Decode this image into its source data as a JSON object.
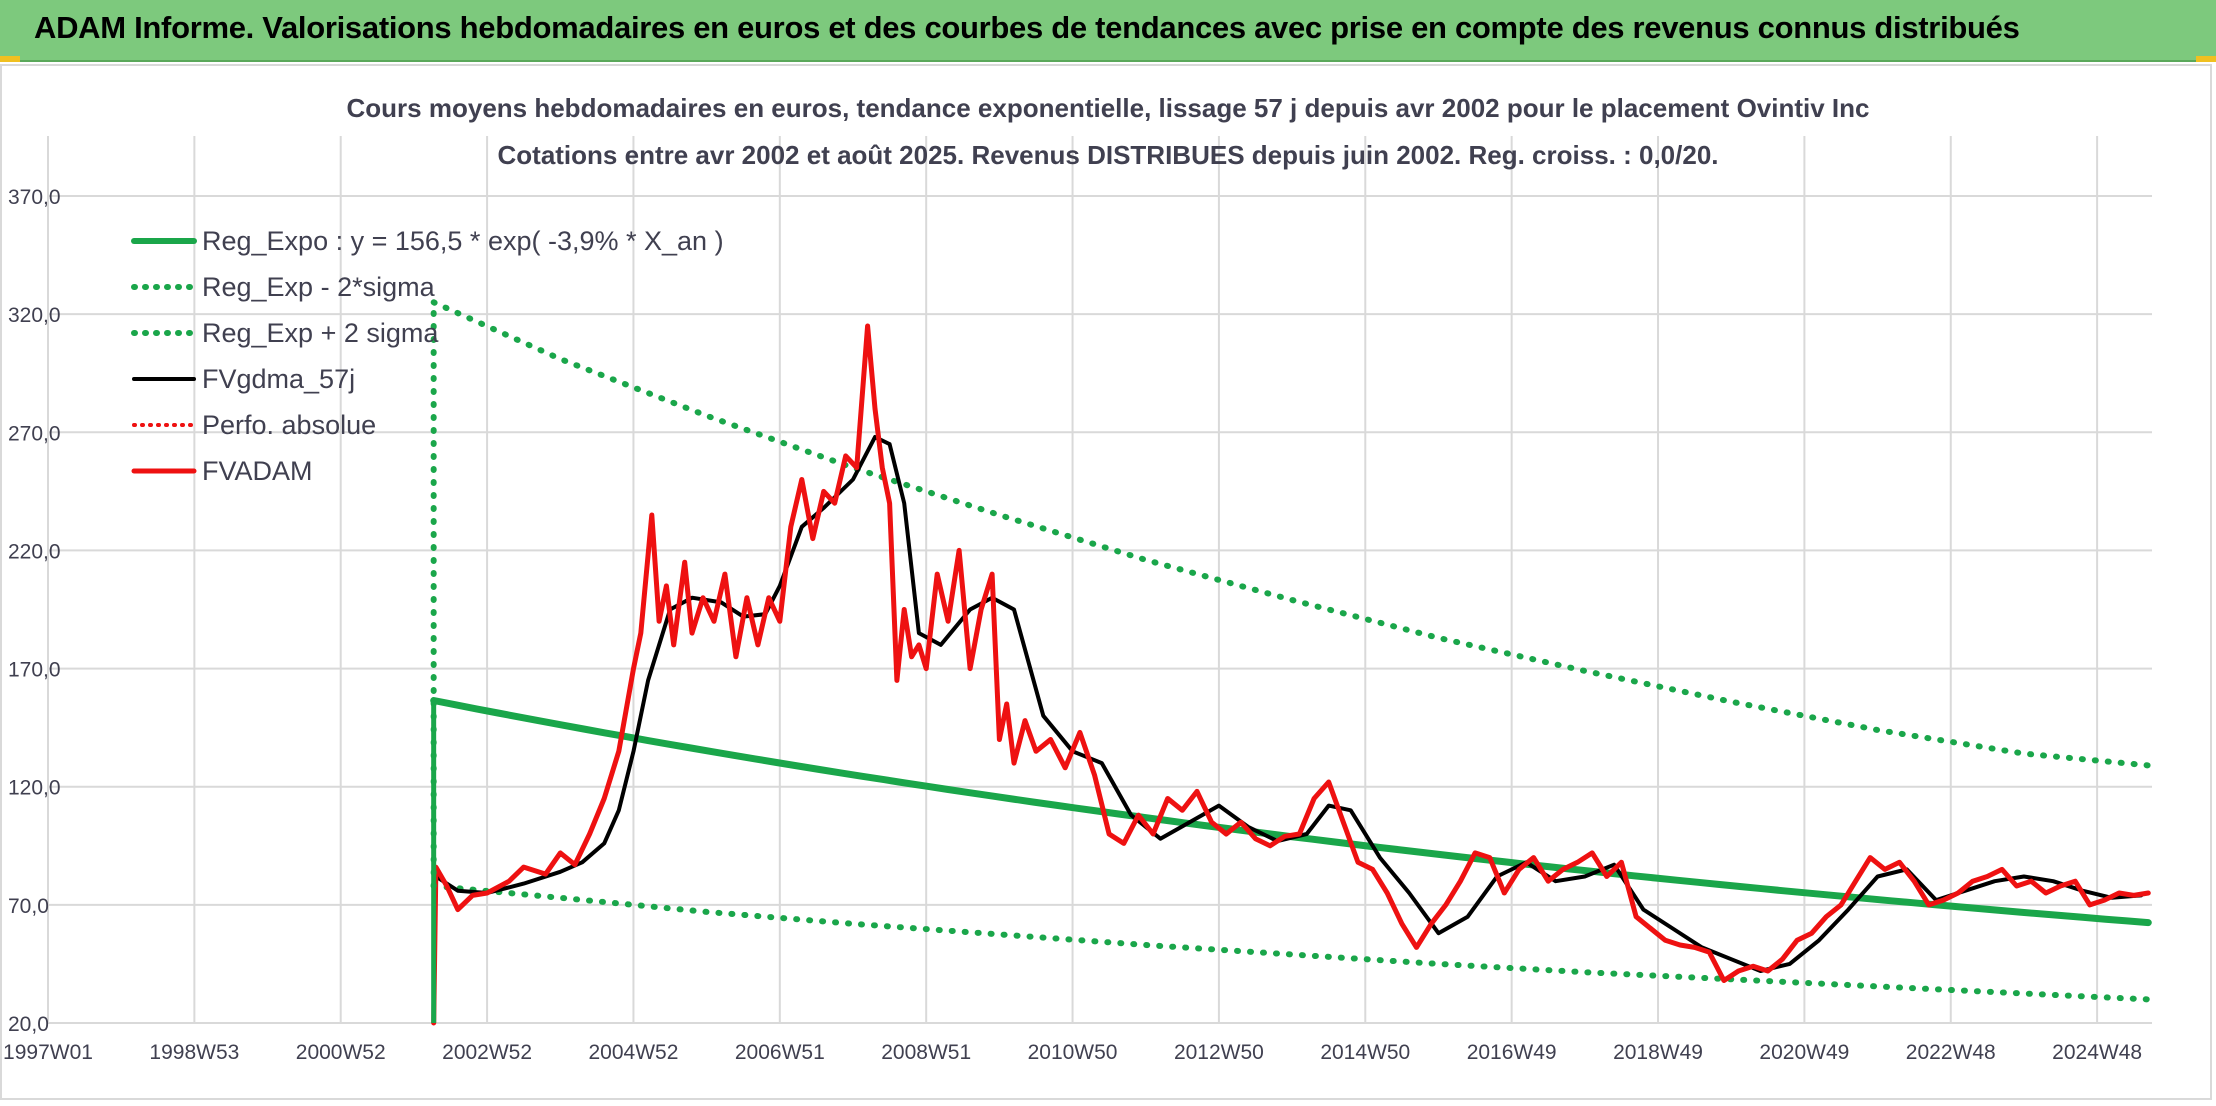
{
  "header": {
    "title": "ADAM Informe. Valorisations hebdomadaires en euros et des courbes de tendances avec prise en compte des revenus connus distribués"
  },
  "chart_data": {
    "type": "line",
    "title_line1": "Cours moyens hebdomadaires en euros, tendance exponentielle, lissage 57 j depuis avr 2002 pour le placement Ovintiv Inc",
    "title_line2": "Cotations entre avr 2002 et août 2025. Revenus DISTRIBUES depuis juin 2002. Reg. croiss. : 0,0/20.",
    "xlabel": "",
    "ylabel": "",
    "ylim": [
      20,
      370
    ],
    "xlim": [
      1997.0,
      2025.75
    ],
    "y_ticks": [
      "370,0",
      "320,0",
      "270,0",
      "220,0",
      "170,0",
      "120,0",
      "70,0",
      "20,0"
    ],
    "y_tick_values": [
      370,
      320,
      270,
      220,
      170,
      120,
      70,
      20
    ],
    "x_ticks": [
      "1997W01",
      "1998W53",
      "2000W52",
      "2002W52",
      "2004W52",
      "2006W51",
      "2008W51",
      "2010W50",
      "2012W50",
      "2014W50",
      "2016W49",
      "2018W49",
      "2020W49",
      "2022W48",
      "2024W48"
    ],
    "x_tick_values": [
      1997.0,
      1999.0,
      2001.0,
      2003.0,
      2005.0,
      2007.0,
      2009.0,
      2011.0,
      2013.0,
      2015.0,
      2017.0,
      2019.0,
      2021.0,
      2023.0,
      2025.0
    ],
    "grid": true,
    "legend_position": "top-left",
    "colors": {
      "banner": "#7dc97d",
      "reg_expo": "#1aa64a",
      "black": "#000000",
      "red": "#ee1111",
      "grid": "#d9d9d9",
      "tick_text": "#404050"
    },
    "series": [
      {
        "name": "Reg_Expo : y = 156,5 * exp( -3,9% *  X_an )",
        "style": "solid-green",
        "x": [
          2002.27,
          2025.7
        ],
        "values": [
          156.5,
          62.5
        ]
      },
      {
        "name": "Reg_Exp - 2*sigma",
        "style": "dotted-green",
        "x": [
          2002.27,
          2004,
          2006,
          2008,
          2010,
          2012,
          2014,
          2016,
          2018,
          2020,
          2022,
          2024,
          2025.7
        ],
        "values": [
          78,
          73,
          67,
          62,
          57.5,
          53,
          49,
          45,
          41.5,
          38.5,
          35.5,
          32.5,
          30
        ]
      },
      {
        "name": "Reg_Exp + 2 sigma",
        "style": "dotted-green",
        "x": [
          2002.27,
          2004,
          2006,
          2008,
          2010,
          2012,
          2014,
          2016,
          2018,
          2020,
          2022,
          2024,
          2025.7
        ],
        "values": [
          325,
          301,
          277,
          255,
          235,
          216,
          199,
          183,
          169,
          156,
          144,
          134,
          129
        ]
      },
      {
        "name": "FVgdma_57j",
        "style": "solid-black",
        "x": [
          2002.3,
          2002.6,
          2003.0,
          2003.5,
          2004.0,
          2004.3,
          2004.6,
          2004.8,
          2005.0,
          2005.2,
          2005.5,
          2005.8,
          2006.2,
          2006.5,
          2006.8,
          2007.0,
          2007.3,
          2007.6,
          2008.0,
          2008.3,
          2008.5,
          2008.7,
          2008.9,
          2009.2,
          2009.6,
          2009.9,
          2010.2,
          2010.6,
          2011.0,
          2011.4,
          2011.8,
          2012.2,
          2012.6,
          2013.0,
          2013.4,
          2013.8,
          2014.2,
          2014.5,
          2014.8,
          2015.2,
          2015.6,
          2016.0,
          2016.4,
          2016.8,
          2017.2,
          2017.6,
          2018.0,
          2018.4,
          2018.8,
          2019.2,
          2019.6,
          2020.0,
          2020.4,
          2020.8,
          2021.2,
          2021.6,
          2022.0,
          2022.4,
          2022.8,
          2023.2,
          2023.6,
          2024.0,
          2024.4,
          2024.8,
          2025.2,
          2025.6
        ],
        "values": [
          82,
          76,
          75,
          79,
          84,
          88,
          96,
          110,
          135,
          165,
          195,
          200,
          198,
          192,
          193,
          205,
          230,
          238,
          250,
          268,
          265,
          240,
          185,
          180,
          195,
          200,
          195,
          150,
          135,
          130,
          108,
          98,
          105,
          112,
          103,
          97,
          100,
          112,
          110,
          90,
          75,
          58,
          65,
          82,
          88,
          80,
          82,
          87,
          68,
          60,
          52,
          47,
          42,
          45,
          55,
          68,
          82,
          85,
          72,
          76,
          80,
          82,
          80,
          76,
          73,
          74
        ]
      },
      {
        "name": "Perfo. absolue",
        "style": "dotted-red",
        "x": [
          2002.27,
          2002.27
        ],
        "values": [
          20,
          84
        ]
      },
      {
        "name": "FVADAM",
        "style": "solid-red",
        "x": [
          2002.27,
          2002.3,
          2002.45,
          2002.6,
          2002.8,
          2003.0,
          2003.3,
          2003.5,
          2003.8,
          2004.0,
          2004.2,
          2004.4,
          2004.6,
          2004.8,
          2005.0,
          2005.1,
          2005.25,
          2005.35,
          2005.45,
          2005.55,
          2005.7,
          2005.8,
          2005.95,
          2006.1,
          2006.25,
          2006.4,
          2006.55,
          2006.7,
          2006.85,
          2007.0,
          2007.15,
          2007.3,
          2007.45,
          2007.6,
          2007.75,
          2007.9,
          2008.05,
          2008.2,
          2008.3,
          2008.4,
          2008.5,
          2008.6,
          2008.7,
          2008.8,
          2008.9,
          2009.0,
          2009.15,
          2009.3,
          2009.45,
          2009.6,
          2009.75,
          2009.9,
          2010.0,
          2010.1,
          2010.2,
          2010.35,
          2010.5,
          2010.7,
          2010.9,
          2011.1,
          2011.3,
          2011.5,
          2011.7,
          2011.9,
          2012.1,
          2012.3,
          2012.5,
          2012.7,
          2012.9,
          2013.1,
          2013.3,
          2013.5,
          2013.7,
          2013.9,
          2014.1,
          2014.3,
          2014.5,
          2014.7,
          2014.9,
          2015.1,
          2015.3,
          2015.5,
          2015.7,
          2015.9,
          2016.1,
          2016.3,
          2016.5,
          2016.7,
          2016.9,
          2017.1,
          2017.3,
          2017.5,
          2017.7,
          2017.9,
          2018.1,
          2018.3,
          2018.5,
          2018.7,
          2018.9,
          2019.1,
          2019.3,
          2019.5,
          2019.7,
          2019.9,
          2020.1,
          2020.3,
          2020.5,
          2020.7,
          2020.9,
          2021.1,
          2021.3,
          2021.5,
          2021.7,
          2021.9,
          2022.1,
          2022.3,
          2022.5,
          2022.7,
          2022.9,
          2023.1,
          2023.3,
          2023.5,
          2023.7,
          2023.9,
          2024.1,
          2024.3,
          2024.5,
          2024.7,
          2024.9,
          2025.1,
          2025.3,
          2025.5,
          2025.7
        ],
        "values": [
          20,
          86,
          78,
          68,
          74,
          75,
          80,
          86,
          83,
          92,
          87,
          100,
          115,
          135,
          170,
          185,
          235,
          190,
          205,
          180,
          215,
          185,
          200,
          190,
          210,
          175,
          200,
          180,
          200,
          190,
          230,
          250,
          225,
          245,
          240,
          260,
          255,
          315,
          280,
          255,
          240,
          165,
          195,
          175,
          180,
          170,
          210,
          190,
          220,
          170,
          195,
          210,
          140,
          155,
          130,
          148,
          135,
          140,
          128,
          143,
          125,
          100,
          96,
          108,
          100,
          115,
          110,
          118,
          105,
          100,
          105,
          98,
          95,
          99,
          100,
          115,
          122,
          105,
          88,
          85,
          75,
          62,
          52,
          62,
          70,
          80,
          92,
          90,
          75,
          85,
          90,
          80,
          85,
          88,
          92,
          82,
          88,
          65,
          60,
          55,
          53,
          52,
          50,
          38,
          42,
          44,
          42,
          47,
          55,
          58,
          65,
          70,
          80,
          90,
          85,
          88,
          80,
          70,
          72,
          75,
          80,
          82,
          85,
          78,
          80,
          75,
          78,
          80,
          70,
          72,
          75,
          74,
          75
        ]
      }
    ]
  }
}
